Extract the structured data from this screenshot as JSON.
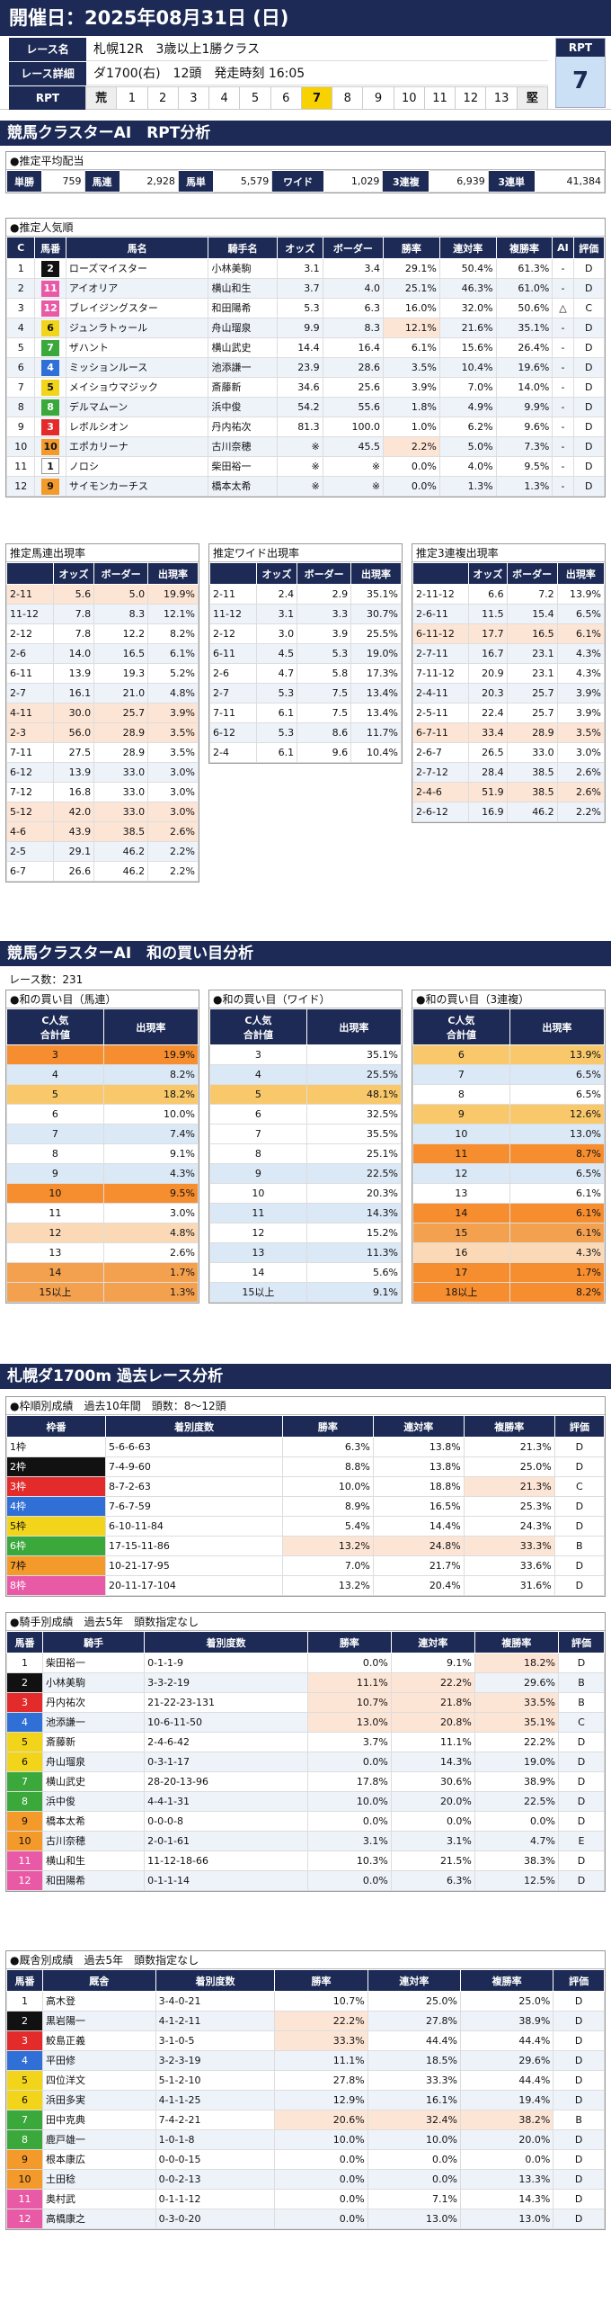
{
  "header": {
    "title": "開催日：2025年08月31日 (日)"
  },
  "race": {
    "name_label": "レース名",
    "name": "札幌12R　3歳以上1勝クラス",
    "detail_label": "レース詳細",
    "detail": "ダ1700(右)　12頭　発走時刻 16:05",
    "rpt_label": "RPT",
    "rpt_first": "荒",
    "rpt_last": "堅",
    "rpt_nums": [
      "1",
      "2",
      "3",
      "4",
      "5",
      "6",
      "7",
      "8",
      "9",
      "10",
      "11",
      "12",
      "13"
    ],
    "rpt_badge_label": "RPT",
    "rpt_value": "7"
  },
  "sec1": {
    "title": "競馬クラスターAI　RPT分析"
  },
  "payout": {
    "title": "●推定平均配当",
    "items": [
      {
        "label": "単勝",
        "value": "759"
      },
      {
        "label": "馬連",
        "value": "2,928"
      },
      {
        "label": "馬単",
        "value": "5,579"
      },
      {
        "label": "ワイド",
        "value": "1,029"
      },
      {
        "label": "3連複",
        "value": "6,939"
      },
      {
        "label": "3連単",
        "value": "41,384"
      }
    ]
  },
  "pop": {
    "title": "●推定人気順",
    "headers": [
      "C",
      "馬番",
      "馬名",
      "騎手名",
      "オッズ",
      "ボーダー",
      "勝率",
      "連対率",
      "複勝率",
      "AI",
      "評価"
    ],
    "rows": [
      [
        "1",
        "2",
        "ローズマイスター",
        "小林美駒",
        "3.1",
        "3.4",
        "29.1%",
        "50.4%",
        "61.3%",
        "-",
        "D"
      ],
      [
        "2",
        "11",
        "アイオリア",
        "横山和生",
        "3.7",
        "4.0",
        "25.1%",
        "46.3%",
        "61.0%",
        "-",
        "D"
      ],
      [
        "3",
        "12",
        "ブレイジングスター",
        "和田陽希",
        "5.3",
        "6.3",
        "16.0%",
        "32.0%",
        "50.6%",
        "△",
        "C"
      ],
      [
        "4",
        "6",
        "ジュンラトゥール",
        "舟山瑠泉",
        "9.9",
        "8.3",
        "12.1%",
        "21.6%",
        "35.1%",
        "-",
        "D"
      ],
      [
        "5",
        "7",
        "ザハント",
        "横山武史",
        "14.4",
        "16.4",
        "6.1%",
        "15.6%",
        "26.4%",
        "-",
        "D"
      ],
      [
        "6",
        "4",
        "ミッションルース",
        "池添謙一",
        "23.9",
        "28.6",
        "3.5%",
        "10.4%",
        "19.6%",
        "-",
        "D"
      ],
      [
        "7",
        "5",
        "メイショウマジック",
        "斎藤新",
        "34.6",
        "25.6",
        "3.9%",
        "7.0%",
        "14.0%",
        "-",
        "D"
      ],
      [
        "8",
        "8",
        "デルマムーン",
        "浜中俊",
        "54.2",
        "55.6",
        "1.8%",
        "4.9%",
        "9.9%",
        "-",
        "D"
      ],
      [
        "9",
        "3",
        "レボルシオン",
        "丹内祐次",
        "81.3",
        "100.0",
        "1.0%",
        "6.2%",
        "9.6%",
        "-",
        "D"
      ],
      [
        "10",
        "10",
        "エポカリーナ",
        "古川奈穂",
        "※",
        "45.5",
        "2.2%",
        "5.0%",
        "7.3%",
        "-",
        "D"
      ],
      [
        "11",
        "1",
        "ノロシ",
        "柴田裕一",
        "※",
        "※",
        "0.0%",
        "4.0%",
        "9.5%",
        "-",
        "D"
      ],
      [
        "12",
        "9",
        "サイモンカーチス",
        "橋本太希",
        "※",
        "※",
        "0.0%",
        "1.3%",
        "1.3%",
        "-",
        "D"
      ]
    ]
  },
  "umaren": {
    "title": "推定馬連出現率",
    "headers": [
      "",
      "オッズ",
      "ボーダー",
      "出現率"
    ],
    "rows": [
      [
        "2-11",
        "5.6",
        "5.0",
        "19.9%"
      ],
      [
        "11-12",
        "7.8",
        "8.3",
        "12.1%"
      ],
      [
        "2-12",
        "7.8",
        "12.2",
        "8.2%"
      ],
      [
        "2-6",
        "14.0",
        "16.5",
        "6.1%"
      ],
      [
        "6-11",
        "13.9",
        "19.3",
        "5.2%"
      ],
      [
        "2-7",
        "16.1",
        "21.0",
        "4.8%"
      ],
      [
        "4-11",
        "30.0",
        "25.7",
        "3.9%"
      ],
      [
        "2-3",
        "56.0",
        "28.9",
        "3.5%"
      ],
      [
        "7-11",
        "27.5",
        "28.9",
        "3.5%"
      ],
      [
        "6-12",
        "13.9",
        "33.0",
        "3.0%"
      ],
      [
        "7-12",
        "16.8",
        "33.0",
        "3.0%"
      ],
      [
        "5-12",
        "42.0",
        "33.0",
        "3.0%"
      ],
      [
        "4-6",
        "43.9",
        "38.5",
        "2.6%"
      ],
      [
        "2-5",
        "29.1",
        "46.2",
        "2.2%"
      ],
      [
        "6-7",
        "26.6",
        "46.2",
        "2.2%"
      ]
    ]
  },
  "wide": {
    "title": "推定ワイド出現率",
    "headers": [
      "",
      "オッズ",
      "ボーダー",
      "出現率"
    ],
    "rows": [
      [
        "2-11",
        "2.4",
        "2.9",
        "35.1%"
      ],
      [
        "11-12",
        "3.1",
        "3.3",
        "30.7%"
      ],
      [
        "2-12",
        "3.0",
        "3.9",
        "25.5%"
      ],
      [
        "6-11",
        "4.5",
        "5.3",
        "19.0%"
      ],
      [
        "2-6",
        "4.7",
        "5.8",
        "17.3%"
      ],
      [
        "2-7",
        "5.3",
        "7.5",
        "13.4%"
      ],
      [
        "7-11",
        "6.1",
        "7.5",
        "13.4%"
      ],
      [
        "6-12",
        "5.3",
        "8.6",
        "11.7%"
      ],
      [
        "2-4",
        "6.1",
        "9.6",
        "10.4%"
      ]
    ]
  },
  "sanren": {
    "title": "推定3連複出現率",
    "headers": [
      "",
      "オッズ",
      "ボーダー",
      "出現率"
    ],
    "rows": [
      [
        "2-11-12",
        "6.6",
        "7.2",
        "13.9%"
      ],
      [
        "2-6-11",
        "11.5",
        "15.4",
        "6.5%"
      ],
      [
        "6-11-12",
        "17.7",
        "16.5",
        "6.1%"
      ],
      [
        "2-7-11",
        "16.7",
        "23.1",
        "4.3%"
      ],
      [
        "7-11-12",
        "20.9",
        "23.1",
        "4.3%"
      ],
      [
        "2-4-11",
        "20.3",
        "25.7",
        "3.9%"
      ],
      [
        "2-5-11",
        "22.4",
        "25.7",
        "3.9%"
      ],
      [
        "6-7-11",
        "33.4",
        "28.9",
        "3.5%"
      ],
      [
        "2-6-7",
        "26.5",
        "33.0",
        "3.0%"
      ],
      [
        "2-7-12",
        "28.4",
        "38.5",
        "2.6%"
      ],
      [
        "2-4-6",
        "51.9",
        "38.5",
        "2.6%"
      ],
      [
        "2-6-12",
        "16.9",
        "46.2",
        "2.2%"
      ]
    ]
  },
  "sec2": {
    "title": "競馬クラスターAI　和の買い目分析",
    "count": "レース数：231"
  },
  "sum_umaren": {
    "title": "●和の買い目（馬連）",
    "headers": [
      "C人気\n合計値",
      "出現率"
    ],
    "rows": [
      [
        "3",
        "19.9%"
      ],
      [
        "4",
        "8.2%"
      ],
      [
        "5",
        "18.2%"
      ],
      [
        "6",
        "10.0%"
      ],
      [
        "7",
        "7.4%"
      ],
      [
        "8",
        "9.1%"
      ],
      [
        "9",
        "4.3%"
      ],
      [
        "10",
        "9.5%"
      ],
      [
        "11",
        "3.0%"
      ],
      [
        "12",
        "4.8%"
      ],
      [
        "13",
        "2.6%"
      ],
      [
        "14",
        "1.7%"
      ],
      [
        "15以上",
        "1.3%"
      ]
    ]
  },
  "sum_wide": {
    "title": "●和の買い目（ワイド）",
    "headers": [
      "C人気\n合計値",
      "出現率"
    ],
    "rows": [
      [
        "3",
        "35.1%"
      ],
      [
        "4",
        "25.5%"
      ],
      [
        "5",
        "48.1%"
      ],
      [
        "6",
        "32.5%"
      ],
      [
        "7",
        "35.5%"
      ],
      [
        "8",
        "25.1%"
      ],
      [
        "9",
        "22.5%"
      ],
      [
        "10",
        "20.3%"
      ],
      [
        "11",
        "14.3%"
      ],
      [
        "12",
        "15.2%"
      ],
      [
        "13",
        "11.3%"
      ],
      [
        "14",
        "5.6%"
      ],
      [
        "15以上",
        "9.1%"
      ]
    ]
  },
  "sum_sanren": {
    "title": "●和の買い目（3連複）",
    "headers": [
      "C人気\n合計値",
      "出現率"
    ],
    "rows": [
      [
        "6",
        "13.9%"
      ],
      [
        "7",
        "6.5%"
      ],
      [
        "8",
        "6.5%"
      ],
      [
        "9",
        "12.6%"
      ],
      [
        "10",
        "13.0%"
      ],
      [
        "11",
        "8.7%"
      ],
      [
        "12",
        "6.5%"
      ],
      [
        "13",
        "6.1%"
      ],
      [
        "14",
        "6.1%"
      ],
      [
        "15",
        "6.1%"
      ],
      [
        "16",
        "4.3%"
      ],
      [
        "17",
        "1.7%"
      ],
      [
        "18以上",
        "8.2%"
      ]
    ]
  },
  "sec3": {
    "title": "札幌ダ1700m 過去レース分析"
  },
  "waku": {
    "title": "●枠順別成績　過去10年間　頭数：8～12頭",
    "headers": [
      "枠番",
      "着別度数",
      "勝率",
      "連対率",
      "複勝率",
      "評価"
    ],
    "rows": [
      [
        "1枠",
        "5-6-6-63",
        "6.3%",
        "13.8%",
        "21.3%",
        "D"
      ],
      [
        "2枠",
        "7-4-9-60",
        "8.8%",
        "13.8%",
        "25.0%",
        "D"
      ],
      [
        "3枠",
        "8-7-2-63",
        "10.0%",
        "18.8%",
        "21.3%",
        "C"
      ],
      [
        "4枠",
        "7-6-7-59",
        "8.9%",
        "16.5%",
        "25.3%",
        "D"
      ],
      [
        "5枠",
        "6-10-11-84",
        "5.4%",
        "14.4%",
        "24.3%",
        "D"
      ],
      [
        "6枠",
        "17-15-11-86",
        "13.2%",
        "24.8%",
        "33.3%",
        "B"
      ],
      [
        "7枠",
        "10-21-17-95",
        "7.0%",
        "21.7%",
        "33.6%",
        "D"
      ],
      [
        "8枠",
        "20-11-17-104",
        "13.2%",
        "20.4%",
        "31.6%",
        "D"
      ]
    ]
  },
  "jockey": {
    "title": "●騎手別成績　過去5年　頭数指定なし",
    "headers": [
      "馬番",
      "騎手",
      "着別度数",
      "勝率",
      "連対率",
      "複勝率",
      "評価"
    ],
    "rows": [
      [
        "1",
        "柴田裕一",
        "0-1-1-9",
        "0.0%",
        "9.1%",
        "18.2%",
        "D"
      ],
      [
        "2",
        "小林美駒",
        "3-3-2-19",
        "11.1%",
        "22.2%",
        "29.6%",
        "B"
      ],
      [
        "3",
        "丹内祐次",
        "21-22-23-131",
        "10.7%",
        "21.8%",
        "33.5%",
        "B"
      ],
      [
        "4",
        "池添謙一",
        "10-6-11-50",
        "13.0%",
        "20.8%",
        "35.1%",
        "C"
      ],
      [
        "5",
        "斎藤新",
        "2-4-6-42",
        "3.7%",
        "11.1%",
        "22.2%",
        "D"
      ],
      [
        "6",
        "舟山瑠泉",
        "0-3-1-17",
        "0.0%",
        "14.3%",
        "19.0%",
        "D"
      ],
      [
        "7",
        "横山武史",
        "28-20-13-96",
        "17.8%",
        "30.6%",
        "38.9%",
        "D"
      ],
      [
        "8",
        "浜中俊",
        "4-4-1-31",
        "10.0%",
        "20.0%",
        "22.5%",
        "D"
      ],
      [
        "9",
        "橋本太希",
        "0-0-0-8",
        "0.0%",
        "0.0%",
        "0.0%",
        "D"
      ],
      [
        "10",
        "古川奈穂",
        "2-0-1-61",
        "3.1%",
        "3.1%",
        "4.7%",
        "E"
      ],
      [
        "11",
        "横山和生",
        "11-12-18-66",
        "10.3%",
        "21.5%",
        "38.3%",
        "D"
      ],
      [
        "12",
        "和田陽希",
        "0-1-1-14",
        "0.0%",
        "6.3%",
        "12.5%",
        "D"
      ]
    ]
  },
  "trainer": {
    "title": "●厩舎別成績　過去5年　頭数指定なし",
    "headers": [
      "馬番",
      "厩舎",
      "着別度数",
      "勝率",
      "連対率",
      "複勝率",
      "評価"
    ],
    "rows": [
      [
        "1",
        "高木登",
        "3-4-0-21",
        "10.7%",
        "25.0%",
        "25.0%",
        "D"
      ],
      [
        "2",
        "黒岩陽一",
        "4-1-2-11",
        "22.2%",
        "27.8%",
        "38.9%",
        "D"
      ],
      [
        "3",
        "鮫島正義",
        "3-1-0-5",
        "33.3%",
        "44.4%",
        "44.4%",
        "D"
      ],
      [
        "4",
        "平田修",
        "3-2-3-19",
        "11.1%",
        "18.5%",
        "29.6%",
        "D"
      ],
      [
        "5",
        "四位洋文",
        "5-1-2-10",
        "27.8%",
        "33.3%",
        "44.4%",
        "D"
      ],
      [
        "6",
        "浜田多実",
        "4-1-1-25",
        "12.9%",
        "16.1%",
        "19.4%",
        "D"
      ],
      [
        "7",
        "田中克典",
        "7-4-2-21",
        "20.6%",
        "32.4%",
        "38.2%",
        "B"
      ],
      [
        "8",
        "鹿戸雄一",
        "1-0-1-8",
        "10.0%",
        "10.0%",
        "20.0%",
        "D"
      ],
      [
        "9",
        "根本康広",
        "0-0-0-15",
        "0.0%",
        "0.0%",
        "0.0%",
        "D"
      ],
      [
        "10",
        "土田稔",
        "0-0-2-13",
        "0.0%",
        "0.0%",
        "13.3%",
        "D"
      ],
      [
        "11",
        "奥村武",
        "0-1-1-12",
        "0.0%",
        "7.1%",
        "14.3%",
        "D"
      ],
      [
        "12",
        "高橋康之",
        "0-3-0-20",
        "0.0%",
        "13.0%",
        "13.0%",
        "D"
      ]
    ]
  },
  "colors": {
    "navy": "#1c2a55",
    "orange": "#f4a14f",
    "light_orange": "#fde5d6",
    "light_blue": "#dbe8f6",
    "yellow_highlight": "#f7d100"
  }
}
